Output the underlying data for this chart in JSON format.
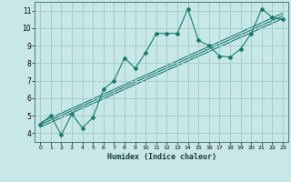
{
  "xlabel": "Humidex (Indice chaleur)",
  "bg_color": "#c8e8e8",
  "grid_color": "#a0c8c8",
  "line_color": "#1a7a6e",
  "xlim": [
    -0.5,
    23.5
  ],
  "ylim": [
    3.5,
    11.5
  ],
  "xticks": [
    0,
    1,
    2,
    3,
    4,
    5,
    6,
    7,
    8,
    9,
    10,
    11,
    12,
    13,
    14,
    15,
    16,
    17,
    18,
    19,
    20,
    21,
    22,
    23
  ],
  "yticks": [
    4,
    5,
    6,
    7,
    8,
    9,
    10,
    11
  ],
  "scatter_x": [
    0,
    1,
    2,
    3,
    4,
    5,
    6,
    7,
    8,
    9,
    10,
    11,
    12,
    13,
    14,
    15,
    16,
    17,
    18,
    19,
    20,
    21,
    22,
    23
  ],
  "scatter_y": [
    4.5,
    5.0,
    3.9,
    5.1,
    4.3,
    4.9,
    6.5,
    7.0,
    8.3,
    7.7,
    8.6,
    9.7,
    9.7,
    9.7,
    11.1,
    9.3,
    9.0,
    8.4,
    8.35,
    8.8,
    9.7,
    11.1,
    10.6,
    10.5
  ],
  "line1_x": [
    0,
    23
  ],
  "line1_y": [
    4.6,
    10.85
  ],
  "line2_x": [
    0,
    23
  ],
  "line2_y": [
    4.35,
    10.55
  ],
  "line3_x": [
    0,
    23
  ],
  "line3_y": [
    4.48,
    10.7
  ]
}
